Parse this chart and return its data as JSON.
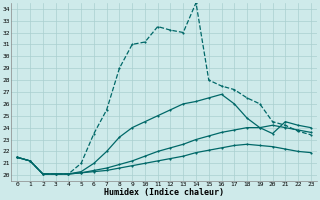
{
  "xlabel": "Humidex (Indice chaleur)",
  "bg_color": "#ceeaea",
  "grid_color": "#aacfcf",
  "line_color": "#006868",
  "xlim": [
    -0.5,
    23.5
  ],
  "ylim": [
    19.5,
    34.5
  ],
  "xticks": [
    0,
    1,
    2,
    3,
    4,
    5,
    6,
    7,
    8,
    9,
    10,
    11,
    12,
    13,
    14,
    15,
    16,
    17,
    18,
    19,
    20,
    21,
    22,
    23
  ],
  "yticks": [
    20,
    21,
    22,
    23,
    24,
    25,
    26,
    27,
    28,
    29,
    30,
    31,
    32,
    33,
    34
  ],
  "lines": [
    {
      "x": [
        0,
        1,
        2,
        3,
        4,
        5,
        6,
        7,
        8,
        9,
        10,
        11,
        12,
        13,
        14,
        15,
        16,
        17,
        18,
        19,
        20,
        21,
        22,
        23
      ],
      "y": [
        21.5,
        21.2,
        20.1,
        20.1,
        20.1,
        21.0,
        23.5,
        25.5,
        29.0,
        31.0,
        31.2,
        32.5,
        32.2,
        32.0,
        34.5,
        28.0,
        27.5,
        27.2,
        26.5,
        26.0,
        24.5,
        24.2,
        23.7,
        23.4
      ],
      "lw": 0.9,
      "ms": 2.0,
      "dashed": true
    },
    {
      "x": [
        0,
        1,
        2,
        3,
        4,
        5,
        6,
        7,
        8,
        9,
        10,
        11,
        12,
        13,
        14,
        15,
        16,
        17,
        18,
        19,
        20,
        21,
        22,
        23
      ],
      "y": [
        21.5,
        21.2,
        20.1,
        20.1,
        20.1,
        20.3,
        21.0,
        22.0,
        23.2,
        24.0,
        24.5,
        25.0,
        25.5,
        26.0,
        26.2,
        26.5,
        26.8,
        26.0,
        24.8,
        24.0,
        23.5,
        24.5,
        24.2,
        24.0
      ],
      "lw": 0.9,
      "ms": 2.0,
      "dashed": false
    },
    {
      "x": [
        0,
        1,
        2,
        3,
        4,
        5,
        6,
        7,
        8,
        9,
        10,
        11,
        12,
        13,
        14,
        15,
        16,
        17,
        18,
        19,
        20,
        21,
        22,
        23
      ],
      "y": [
        21.5,
        21.2,
        20.1,
        20.1,
        20.1,
        20.2,
        20.4,
        20.6,
        20.9,
        21.2,
        21.6,
        22.0,
        22.3,
        22.6,
        23.0,
        23.3,
        23.6,
        23.8,
        24.0,
        24.0,
        24.2,
        24.0,
        23.8,
        23.6
      ],
      "lw": 0.9,
      "ms": 2.0,
      "dashed": false
    },
    {
      "x": [
        0,
        1,
        2,
        3,
        4,
        5,
        6,
        7,
        8,
        9,
        10,
        11,
        12,
        13,
        14,
        15,
        16,
        17,
        18,
        19,
        20,
        21,
        22,
        23
      ],
      "y": [
        21.5,
        21.2,
        20.1,
        20.1,
        20.1,
        20.2,
        20.3,
        20.4,
        20.6,
        20.8,
        21.0,
        21.2,
        21.4,
        21.6,
        21.9,
        22.1,
        22.3,
        22.5,
        22.6,
        22.5,
        22.4,
        22.2,
        22.0,
        21.9
      ],
      "lw": 0.9,
      "ms": 2.0,
      "dashed": false
    }
  ]
}
